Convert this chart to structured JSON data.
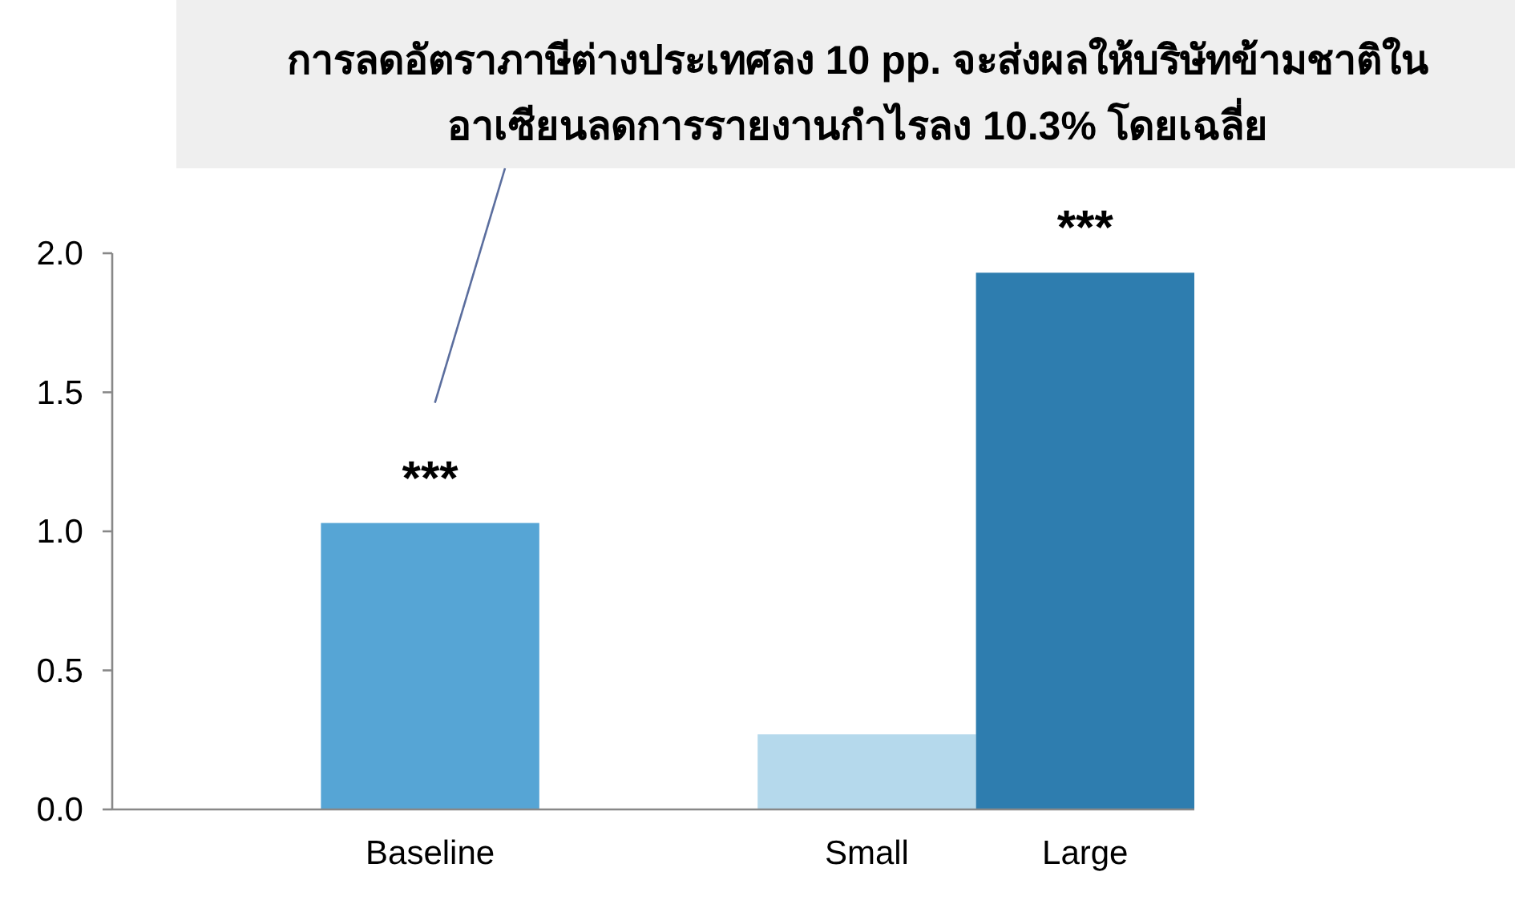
{
  "chart_data": {
    "type": "bar",
    "categories": [
      null,
      "Baseline",
      null,
      "Small",
      "Large"
    ],
    "values": [
      null,
      1.03,
      null,
      0.27,
      1.93
    ],
    "colors": [
      null,
      "#56a5d5",
      null,
      "#b5d9ec",
      "#2e7daf"
    ],
    "ylim": [
      0,
      2.0
    ],
    "yticks": [
      {
        "value": 0,
        "label": "0.0"
      },
      {
        "value": 0.5,
        "label": "0.5"
      },
      {
        "value": 1,
        "label": "1.0"
      },
      {
        "value": 1.5,
        "label": "1.5"
      },
      {
        "value": 2,
        "label": "2.0"
      }
    ],
    "grid": false,
    "annotations": [
      "การลดอัตราภาษีต่างประเทศลง 10 pp. จะส่งผลให้บริษัทข้ามชาติใน\nอาเซียนลดการรายงานกำไรลง 10.3% โดยเฉลี่ย",
      {
        "text": "***",
        "x": "Baseline",
        "y": 1.03
      },
      {
        "text": "***",
        "x": "Large",
        "y": 1.93
      }
    ]
  }
}
